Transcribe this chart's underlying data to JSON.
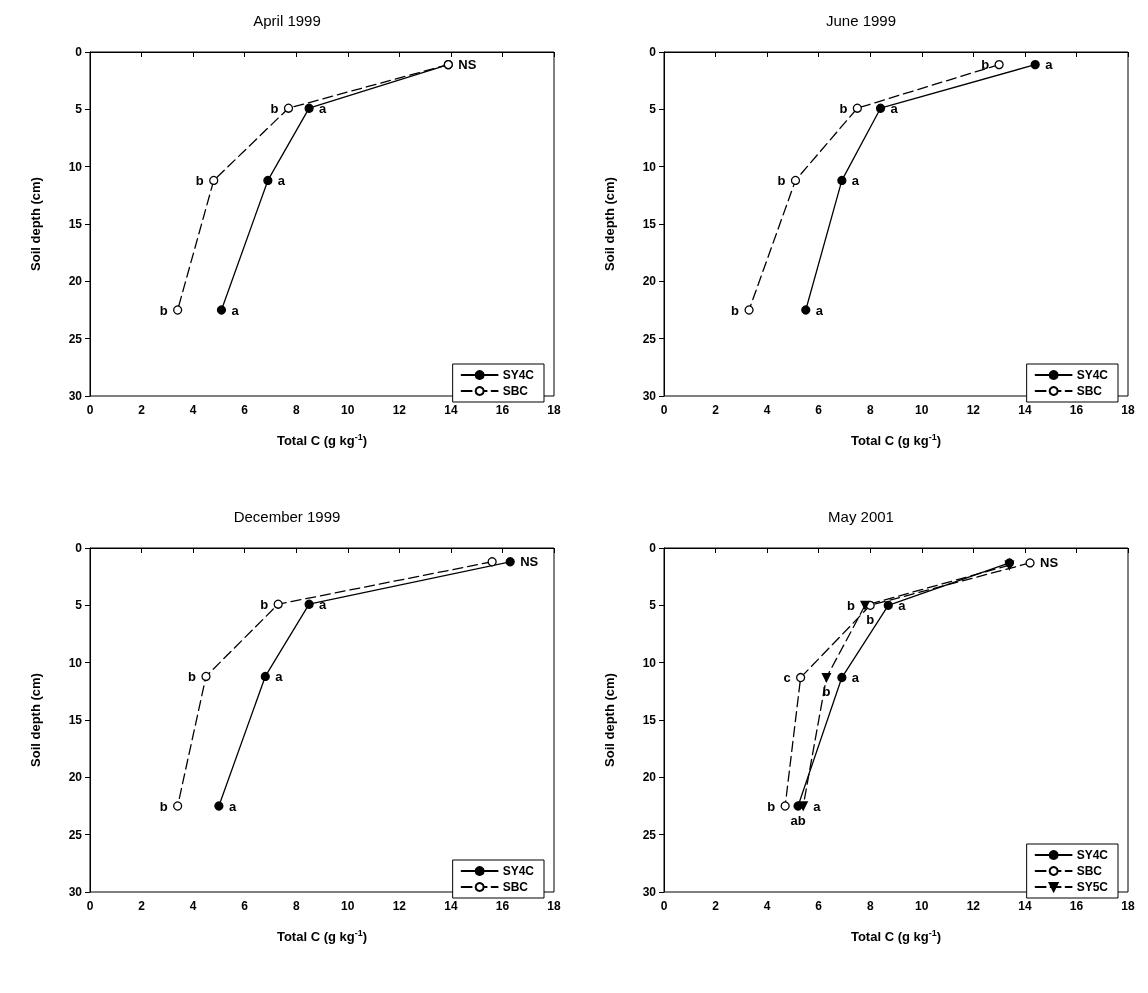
{
  "chart_data": [
    {
      "type": "line",
      "title": "April 1999",
      "xlabel": "Total C (g kg$^{-1}$)",
      "ylabel": "Soil depth (cm)",
      "xlim": [
        0,
        18
      ],
      "xticks": [
        0,
        2,
        4,
        6,
        8,
        10,
        12,
        14,
        16,
        18
      ],
      "ylim": [
        30,
        0
      ],
      "yticks": [
        0,
        5,
        10,
        15,
        20,
        25,
        30
      ],
      "grid": false,
      "legend": "bottom right",
      "series": [
        {
          "name": "SY4C",
          "color": "#000000",
          "marker": "circle",
          "line_style": "solid",
          "x": [
            13.9,
            8.5,
            6.9,
            5.1
          ],
          "values": [
            1.1,
            4.9,
            11.2,
            22.5
          ]
        },
        {
          "name": "SBC",
          "color": "#000000",
          "marker": "circle-open",
          "line_style": "dashed",
          "x": [
            13.9,
            7.7,
            4.8,
            3.4
          ],
          "values": [
            1.1,
            4.9,
            11.2,
            22.5
          ]
        }
      ],
      "annotations": [
        {
          "text": "NS",
          "x": 13.9,
          "y": 1.1
        },
        {
          "text": "b",
          "x": 7.7,
          "y": 4.9
        },
        {
          "text": "a",
          "x": 8.5,
          "y": 4.9
        },
        {
          "text": "b",
          "x": 4.8,
          "y": 11.2
        },
        {
          "text": "a",
          "x": 6.9,
          "y": 11.2
        },
        {
          "text": "b",
          "x": 3.4,
          "y": 22.5
        },
        {
          "text": "a",
          "x": 5.1,
          "y": 22.5
        }
      ]
    },
    {
      "type": "line",
      "title": "June 1999",
      "xlabel": "Total C (g kg$^{-1}$)",
      "ylabel": "Soil depth (cm)",
      "xlim": [
        0,
        18
      ],
      "xticks": [
        0,
        2,
        4,
        6,
        8,
        10,
        12,
        14,
        16,
        18
      ],
      "ylim": [
        30,
        0
      ],
      "yticks": [
        0,
        5,
        10,
        15,
        20,
        25,
        30
      ],
      "grid": false,
      "legend": "bottom right",
      "series": [
        {
          "name": "SY4C",
          "color": "#000000",
          "marker": "circle",
          "line_style": "solid",
          "x": [
            14.4,
            8.4,
            6.9,
            5.5
          ],
          "values": [
            1.1,
            4.9,
            11.2,
            22.5
          ]
        },
        {
          "name": "SBC",
          "color": "#000000",
          "marker": "circle-open",
          "line_style": "dashed",
          "x": [
            13.0,
            7.5,
            5.1,
            3.3
          ],
          "values": [
            1.1,
            4.9,
            11.2,
            22.5
          ]
        }
      ],
      "annotations": [
        {
          "text": "b",
          "x": 13.0,
          "y": 1.1
        },
        {
          "text": "a",
          "x": 14.4,
          "y": 1.1
        },
        {
          "text": "b",
          "x": 7.5,
          "y": 4.9
        },
        {
          "text": "a",
          "x": 8.4,
          "y": 4.9
        },
        {
          "text": "b",
          "x": 5.1,
          "y": 11.2
        },
        {
          "text": "a",
          "x": 6.9,
          "y": 11.2
        },
        {
          "text": "b",
          "x": 3.3,
          "y": 22.5
        },
        {
          "text": "a",
          "x": 5.5,
          "y": 22.5
        }
      ]
    },
    {
      "type": "line",
      "title": "December 1999",
      "xlabel": "Total C (g kg$^{-1}$)",
      "ylabel": "Soil depth (cm)",
      "xlim": [
        0,
        18
      ],
      "xticks": [
        0,
        2,
        4,
        6,
        8,
        10,
        12,
        14,
        16,
        18
      ],
      "ylim": [
        30,
        0
      ],
      "yticks": [
        0,
        5,
        10,
        15,
        20,
        25,
        30
      ],
      "grid": false,
      "legend": "bottom right",
      "series": [
        {
          "name": "SY4C",
          "color": "#000000",
          "marker": "circle",
          "line_style": "solid",
          "x": [
            16.3,
            8.5,
            6.8,
            5.0
          ],
          "values": [
            1.2,
            4.9,
            11.2,
            22.5
          ]
        },
        {
          "name": "SBC",
          "color": "#000000",
          "marker": "circle-open",
          "line_style": "dashed",
          "x": [
            15.6,
            7.3,
            4.5,
            3.4
          ],
          "values": [
            1.2,
            4.9,
            11.2,
            22.5
          ]
        }
      ],
      "annotations": [
        {
          "text": "NS",
          "x": 16.3,
          "y": 1.2
        },
        {
          "text": "b",
          "x": 7.3,
          "y": 4.9
        },
        {
          "text": "a",
          "x": 8.5,
          "y": 4.9
        },
        {
          "text": "b",
          "x": 4.5,
          "y": 11.2
        },
        {
          "text": "a",
          "x": 6.8,
          "y": 11.2
        },
        {
          "text": "b",
          "x": 3.4,
          "y": 22.5
        },
        {
          "text": "a",
          "x": 5.0,
          "y": 22.5
        }
      ]
    },
    {
      "type": "line",
      "title": "May 2001",
      "xlabel": "Total C (g kg$^{-1}$)",
      "ylabel": "Soil depth (cm)",
      "xlim": [
        0,
        18
      ],
      "xticks": [
        0,
        2,
        4,
        6,
        8,
        10,
        12,
        14,
        16,
        18
      ],
      "ylim": [
        30,
        0
      ],
      "yticks": [
        0,
        5,
        10,
        15,
        20,
        25,
        30
      ],
      "grid": false,
      "legend": "bottom right",
      "series": [
        {
          "name": "SY4C",
          "color": "#000000",
          "marker": "circle",
          "line_style": "solid",
          "x": [
            13.4,
            8.7,
            6.9,
            5.2
          ],
          "values": [
            1.3,
            5.0,
            11.3,
            22.5
          ]
        },
        {
          "name": "SBC",
          "color": "#000000",
          "marker": "circle-open",
          "line_style": "dashed",
          "x": [
            14.2,
            8.0,
            5.3,
            4.7
          ],
          "values": [
            1.3,
            5.0,
            11.3,
            22.5
          ]
        },
        {
          "name": "SY5C",
          "color": "#000000",
          "marker": "triangle",
          "line_style": "dashed",
          "x": [
            13.4,
            7.8,
            6.3,
            5.4
          ],
          "values": [
            1.5,
            5.0,
            11.3,
            22.5
          ]
        }
      ],
      "annotations": [
        {
          "text": "NS",
          "x": 14.2,
          "y": 1.3
        },
        {
          "text": "b",
          "x": 7.8,
          "y": 5.0
        },
        {
          "text": "b",
          "x": 8.0,
          "y": 5.0
        },
        {
          "text": "a",
          "x": 8.7,
          "y": 5.0
        },
        {
          "text": "c",
          "x": 5.3,
          "y": 11.3
        },
        {
          "text": "b",
          "x": 6.3,
          "y": 11.3
        },
        {
          "text": "a",
          "x": 6.9,
          "y": 11.3
        },
        {
          "text": "b",
          "x": 4.7,
          "y": 22.5
        },
        {
          "text": "ab",
          "x": 5.2,
          "y": 22.5
        },
        {
          "text": "a",
          "x": 5.4,
          "y": 22.5
        }
      ]
    }
  ]
}
